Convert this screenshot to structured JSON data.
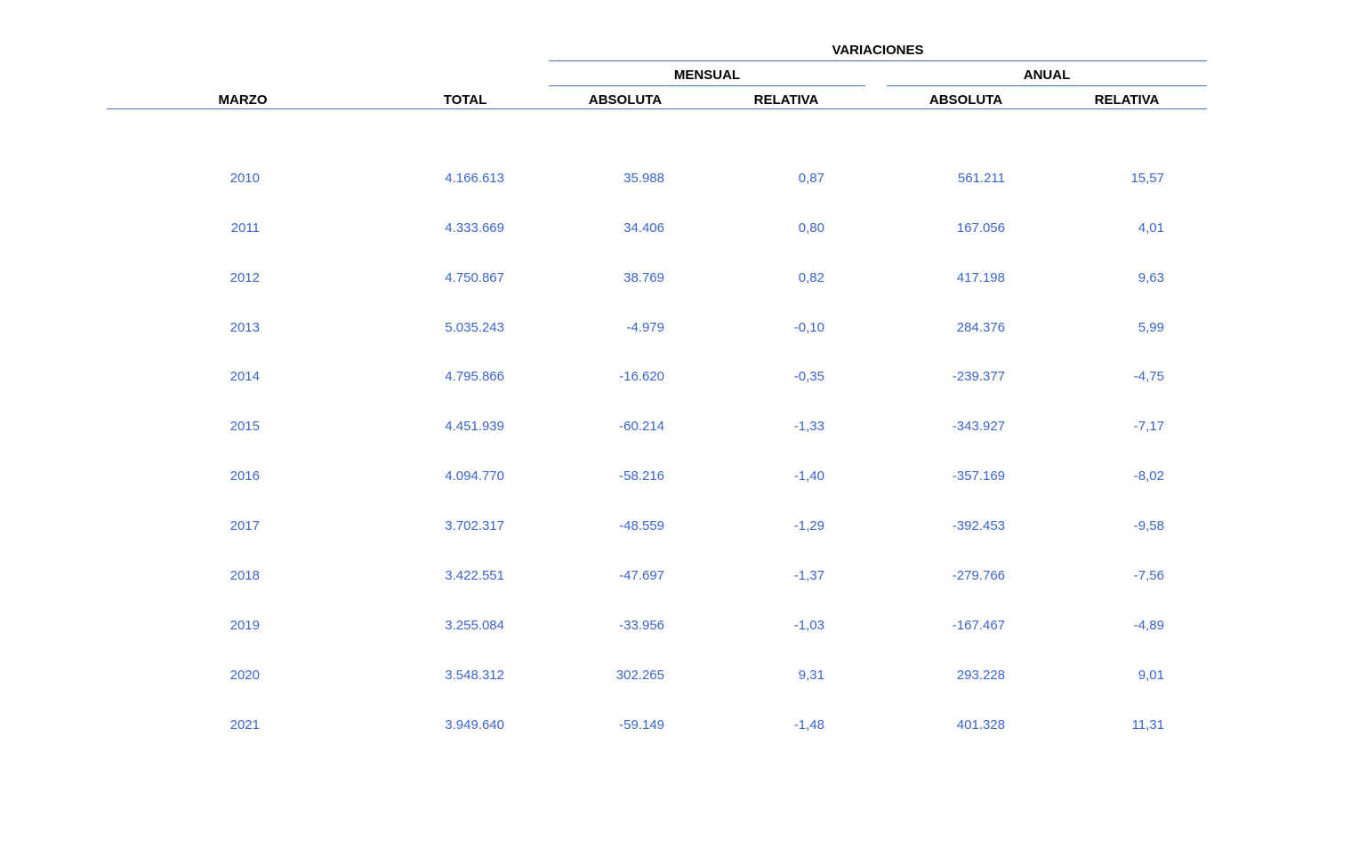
{
  "table": {
    "group_header": "VARIACIONES",
    "subgroup_mensual": "MENSUAL",
    "subgroup_anual": "ANUAL",
    "columns": {
      "month": "MARZO",
      "total": "TOTAL",
      "mensual_absoluta": "ABSOLUTA",
      "mensual_relativa": "RELATIVA",
      "anual_absoluta": "ABSOLUTA",
      "anual_relativa": "RELATIVA"
    },
    "rows": [
      {
        "year": "2010",
        "total": "4.166.613",
        "mensual_absoluta": "35.988",
        "mensual_relativa": "0,87",
        "anual_absoluta": "561.211",
        "anual_relativa": "15,57"
      },
      {
        "year": "2011",
        "total": "4.333.669",
        "mensual_absoluta": "34.406",
        "mensual_relativa": "0,80",
        "anual_absoluta": "167.056",
        "anual_relativa": "4,01"
      },
      {
        "year": "2012",
        "total": "4.750.867",
        "mensual_absoluta": "38.769",
        "mensual_relativa": "0,82",
        "anual_absoluta": "417.198",
        "anual_relativa": "9,63"
      },
      {
        "year": "2013",
        "total": "5.035.243",
        "mensual_absoluta": "-4.979",
        "mensual_relativa": "-0,10",
        "anual_absoluta": "284.376",
        "anual_relativa": "5,99"
      },
      {
        "year": "2014",
        "total": "4.795.866",
        "mensual_absoluta": "-16.620",
        "mensual_relativa": "-0,35",
        "anual_absoluta": "-239.377",
        "anual_relativa": "-4,75"
      },
      {
        "year": "2015",
        "total": "4.451.939",
        "mensual_absoluta": "-60.214",
        "mensual_relativa": "-1,33",
        "anual_absoluta": "-343.927",
        "anual_relativa": "-7,17"
      },
      {
        "year": "2016",
        "total": "4.094.770",
        "mensual_absoluta": "-58.216",
        "mensual_relativa": "-1,40",
        "anual_absoluta": "-357.169",
        "anual_relativa": "-8,02"
      },
      {
        "year": "2017",
        "total": "3.702.317",
        "mensual_absoluta": "-48.559",
        "mensual_relativa": "-1,29",
        "anual_absoluta": "-392.453",
        "anual_relativa": "-9,58"
      },
      {
        "year": "2018",
        "total": "3.422.551",
        "mensual_absoluta": "-47.697",
        "mensual_relativa": "-1,37",
        "anual_absoluta": "-279.766",
        "anual_relativa": "-7,56"
      },
      {
        "year": "2019",
        "total": "3.255.084",
        "mensual_absoluta": "-33.956",
        "mensual_relativa": "-1,03",
        "anual_absoluta": "-167.467",
        "anual_relativa": "-4,89"
      },
      {
        "year": "2020",
        "total": "3.548.312",
        "mensual_absoluta": "302.265",
        "mensual_relativa": "9,31",
        "anual_absoluta": "293.228",
        "anual_relativa": "9,01"
      },
      {
        "year": "2021",
        "total": "3.949.640",
        "mensual_absoluta": "-59.149",
        "mensual_relativa": "-1,48",
        "anual_absoluta": "401.328",
        "anual_relativa": "11,31"
      }
    ]
  },
  "colors": {
    "data_text": "#3b63c9",
    "rule_line": "#4a72b8",
    "header_text": "#000000",
    "background": "#ffffff"
  }
}
